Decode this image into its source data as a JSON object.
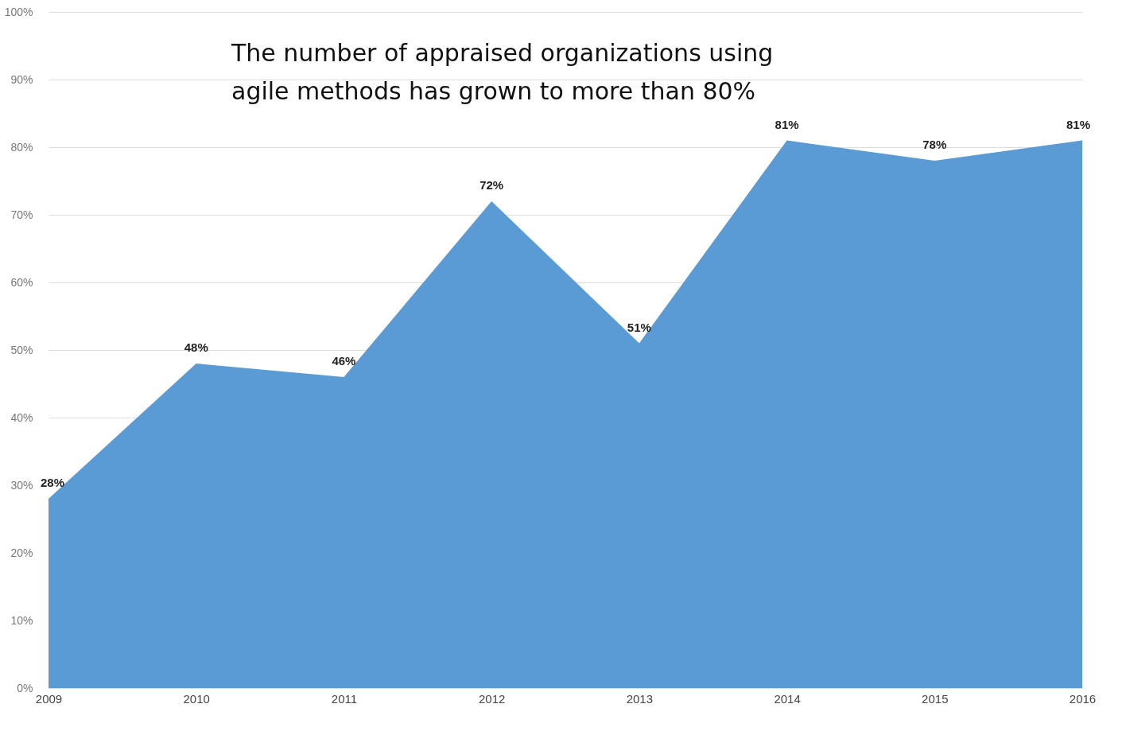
{
  "chart_data": {
    "type": "area",
    "categories": [
      "2009",
      "2010",
      "2011",
      "2012",
      "2013",
      "2014",
      "2015",
      "2016"
    ],
    "series": [
      {
        "color": "#5b9bd5",
        "values": [
          28,
          48,
          46,
          72,
          51,
          81,
          78,
          81
        ],
        "value_labels": [
          "28%",
          "48%",
          "46%",
          "72%",
          "51%",
          "81%",
          "78%",
          "81%"
        ]
      }
    ],
    "ylim": [
      0,
      100
    ],
    "yticks": [
      {
        "value": 0,
        "label": "0%"
      },
      {
        "value": 10,
        "label": "10%"
      },
      {
        "value": 20,
        "label": "20%"
      },
      {
        "value": 30,
        "label": "30%"
      },
      {
        "value": 40,
        "label": "40%"
      },
      {
        "value": 50,
        "label": "50%"
      },
      {
        "value": 60,
        "label": "60%"
      },
      {
        "value": 70,
        "label": "70%"
      },
      {
        "value": 80,
        "label": "80%"
      },
      {
        "value": 90,
        "label": "90%"
      },
      {
        "value": 100,
        "label": "100%"
      }
    ],
    "grid": "y",
    "annotations": [
      "The number of appraised organizations using\nagile methods has grown to more than 80%"
    ]
  }
}
